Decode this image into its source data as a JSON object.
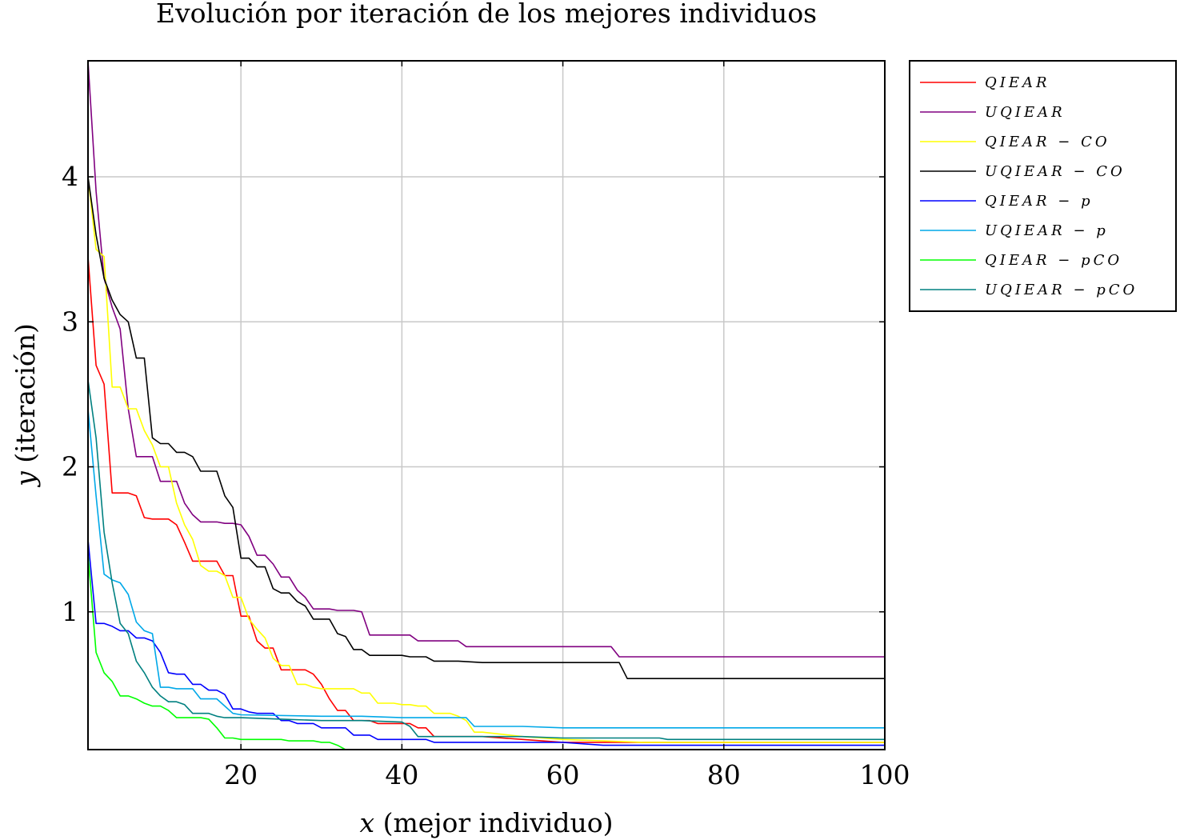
{
  "chart_data": {
    "type": "line",
    "title": "Evolución por iteración de los mejores individuos",
    "xlabel": "x (mejor individuo)",
    "ylabel": "y (iteración)",
    "xlim": [
      1,
      100
    ],
    "ylim": [
      0.05,
      4.8
    ],
    "xticks": [
      20,
      40,
      60,
      80,
      100
    ],
    "yticks": [
      1,
      2,
      3,
      4
    ],
    "grid": true,
    "legend_position": "outside-right-top",
    "series": [
      {
        "name": "QIEAR",
        "color": "#ff0000",
        "x": [
          1,
          2,
          3,
          4,
          5,
          6,
          7,
          8,
          9,
          10,
          11,
          12,
          13,
          14,
          15,
          16,
          17,
          18,
          19,
          20,
          21,
          22,
          23,
          24,
          25,
          26,
          27,
          28,
          29,
          30,
          31,
          32,
          33,
          34,
          35,
          36,
          37,
          38,
          39,
          40,
          41,
          42,
          43,
          44,
          45,
          50,
          55,
          60,
          70,
          80,
          100
        ],
        "y": [
          3.45,
          2.7,
          2.57,
          1.82,
          1.82,
          1.82,
          1.8,
          1.65,
          1.64,
          1.64,
          1.64,
          1.6,
          1.48,
          1.35,
          1.35,
          1.35,
          1.35,
          1.25,
          1.25,
          0.97,
          0.97,
          0.8,
          0.75,
          0.75,
          0.6,
          0.6,
          0.6,
          0.6,
          0.57,
          0.5,
          0.4,
          0.32,
          0.32,
          0.25,
          0.25,
          0.25,
          0.23,
          0.23,
          0.23,
          0.23,
          0.23,
          0.2,
          0.2,
          0.14,
          0.14,
          0.14,
          0.12,
          0.1,
          0.1,
          0.1,
          0.1
        ]
      },
      {
        "name": "UQIEAR",
        "color": "#800080",
        "x": [
          1,
          2,
          3,
          4,
          5,
          6,
          7,
          8,
          9,
          10,
          11,
          12,
          13,
          14,
          15,
          16,
          17,
          18,
          19,
          20,
          21,
          22,
          23,
          24,
          25,
          26,
          27,
          28,
          29,
          30,
          31,
          32,
          33,
          34,
          35,
          36,
          37,
          40,
          41,
          42,
          46,
          47,
          48,
          55,
          65,
          66,
          67,
          100
        ],
        "y": [
          4.8,
          3.9,
          3.3,
          3.1,
          2.95,
          2.4,
          2.07,
          2.07,
          2.07,
          1.9,
          1.9,
          1.9,
          1.75,
          1.67,
          1.62,
          1.62,
          1.62,
          1.61,
          1.61,
          1.6,
          1.52,
          1.39,
          1.39,
          1.33,
          1.24,
          1.24,
          1.15,
          1.1,
          1.02,
          1.02,
          1.02,
          1.01,
          1.01,
          1.01,
          1.0,
          0.84,
          0.84,
          0.84,
          0.84,
          0.8,
          0.8,
          0.8,
          0.76,
          0.76,
          0.76,
          0.76,
          0.69,
          0.69
        ]
      },
      {
        "name": "QIEAR − CO",
        "color": "#ffff00",
        "x": [
          1,
          2,
          3,
          4,
          5,
          6,
          7,
          8,
          9,
          10,
          11,
          12,
          13,
          14,
          15,
          16,
          17,
          18,
          19,
          20,
          21,
          22,
          23,
          24,
          25,
          26,
          27,
          28,
          29,
          30,
          31,
          32,
          33,
          34,
          35,
          36,
          37,
          38,
          39,
          40,
          41,
          42,
          43,
          44,
          45,
          46,
          47,
          48,
          49,
          50,
          55,
          60,
          70,
          100
        ],
        "y": [
          4.0,
          3.5,
          3.45,
          2.55,
          2.55,
          2.4,
          2.4,
          2.25,
          2.15,
          2.0,
          2.0,
          1.75,
          1.6,
          1.5,
          1.32,
          1.28,
          1.28,
          1.25,
          1.1,
          1.1,
          0.95,
          0.88,
          0.82,
          0.68,
          0.63,
          0.63,
          0.5,
          0.5,
          0.48,
          0.47,
          0.47,
          0.47,
          0.47,
          0.47,
          0.44,
          0.44,
          0.37,
          0.37,
          0.37,
          0.36,
          0.36,
          0.35,
          0.35,
          0.3,
          0.3,
          0.3,
          0.28,
          0.25,
          0.17,
          0.17,
          0.14,
          0.12,
          0.1,
          0.1
        ]
      },
      {
        "name": "UQIEAR − CO",
        "color": "#000000",
        "x": [
          1,
          2,
          3,
          4,
          5,
          6,
          7,
          8,
          9,
          10,
          11,
          12,
          13,
          14,
          15,
          16,
          17,
          18,
          19,
          20,
          21,
          22,
          23,
          24,
          25,
          26,
          27,
          28,
          29,
          30,
          31,
          32,
          33,
          34,
          35,
          36,
          37,
          40,
          41,
          42,
          43,
          44,
          46,
          47,
          50,
          51,
          52,
          60,
          65,
          66,
          67,
          68,
          100
        ],
        "y": [
          4.0,
          3.6,
          3.3,
          3.15,
          3.05,
          3.0,
          2.75,
          2.75,
          2.2,
          2.16,
          2.16,
          2.1,
          2.1,
          2.07,
          1.97,
          1.97,
          1.97,
          1.8,
          1.72,
          1.37,
          1.37,
          1.31,
          1.31,
          1.16,
          1.13,
          1.13,
          1.07,
          1.04,
          0.95,
          0.95,
          0.95,
          0.85,
          0.83,
          0.74,
          0.74,
          0.7,
          0.7,
          0.7,
          0.69,
          0.69,
          0.69,
          0.66,
          0.66,
          0.66,
          0.65,
          0.65,
          0.65,
          0.65,
          0.65,
          0.65,
          0.65,
          0.54,
          0.54
        ]
      },
      {
        "name": "QIEAR − p",
        "color": "#0000ff",
        "x": [
          1,
          2,
          3,
          4,
          5,
          6,
          7,
          8,
          9,
          10,
          11,
          12,
          13,
          14,
          15,
          16,
          17,
          18,
          19,
          20,
          21,
          22,
          23,
          24,
          25,
          26,
          27,
          28,
          29,
          30,
          31,
          32,
          33,
          34,
          35,
          36,
          37,
          40,
          41,
          42,
          43,
          44,
          45,
          50,
          60,
          65,
          100
        ],
        "y": [
          1.5,
          0.92,
          0.92,
          0.9,
          0.87,
          0.87,
          0.82,
          0.82,
          0.8,
          0.72,
          0.58,
          0.57,
          0.57,
          0.5,
          0.5,
          0.46,
          0.46,
          0.43,
          0.33,
          0.33,
          0.31,
          0.3,
          0.3,
          0.3,
          0.25,
          0.25,
          0.23,
          0.23,
          0.23,
          0.2,
          0.2,
          0.2,
          0.2,
          0.15,
          0.15,
          0.15,
          0.12,
          0.12,
          0.12,
          0.12,
          0.12,
          0.1,
          0.1,
          0.1,
          0.1,
          0.08,
          0.08
        ]
      },
      {
        "name": "UQIEAR − p",
        "color": "#00a8e8",
        "x": [
          1,
          2,
          3,
          4,
          5,
          6,
          7,
          8,
          9,
          10,
          11,
          12,
          13,
          14,
          15,
          16,
          17,
          18,
          19,
          20,
          30,
          35,
          40,
          45,
          48,
          49,
          55,
          60,
          65,
          100
        ],
        "y": [
          2.4,
          1.8,
          1.26,
          1.22,
          1.2,
          1.12,
          0.93,
          0.87,
          0.85,
          0.48,
          0.48,
          0.47,
          0.47,
          0.47,
          0.4,
          0.4,
          0.4,
          0.35,
          0.3,
          0.29,
          0.28,
          0.28,
          0.27,
          0.27,
          0.27,
          0.21,
          0.21,
          0.2,
          0.2,
          0.2
        ]
      },
      {
        "name": "QIEAR − pCO",
        "color": "#00ff00",
        "x": [
          1,
          2,
          3,
          4,
          5,
          6,
          7,
          8,
          9,
          10,
          11,
          12,
          13,
          14,
          15,
          16,
          17,
          18,
          19,
          20,
          21,
          22,
          23,
          24,
          25,
          26,
          27,
          28,
          29,
          30,
          31,
          32,
          33,
          100
        ],
        "y": [
          1.4,
          0.72,
          0.58,
          0.52,
          0.42,
          0.42,
          0.4,
          0.37,
          0.35,
          0.35,
          0.32,
          0.27,
          0.27,
          0.27,
          0.27,
          0.26,
          0.2,
          0.13,
          0.13,
          0.12,
          0.12,
          0.12,
          0.12,
          0.12,
          0.12,
          0.11,
          0.11,
          0.11,
          0.11,
          0.1,
          0.1,
          0.08,
          0.05,
          0.05
        ]
      },
      {
        "name": "UQIEAR − pCO",
        "color": "#008080",
        "x": [
          1,
          2,
          3,
          4,
          5,
          6,
          7,
          8,
          9,
          10,
          11,
          12,
          13,
          14,
          15,
          16,
          17,
          18,
          20,
          25,
          30,
          35,
          40,
          41,
          42,
          45,
          50,
          55,
          60,
          72,
          73,
          100
        ],
        "y": [
          2.6,
          2.2,
          1.55,
          1.2,
          0.92,
          0.85,
          0.66,
          0.58,
          0.48,
          0.42,
          0.38,
          0.38,
          0.36,
          0.3,
          0.3,
          0.3,
          0.28,
          0.27,
          0.27,
          0.26,
          0.25,
          0.25,
          0.24,
          0.21,
          0.14,
          0.14,
          0.14,
          0.14,
          0.13,
          0.13,
          0.12,
          0.12
        ]
      }
    ]
  }
}
